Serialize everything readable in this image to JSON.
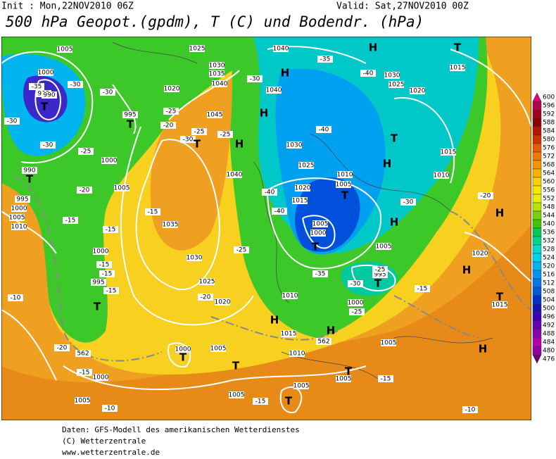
{
  "header": {
    "init": "Init : Mon,22NOV2010 06Z",
    "valid": "Valid: Sat,27NOV2010 00Z",
    "title": "500 hPa Geopot.(gpdm), T (C) und Bodendr. (hPa)"
  },
  "legend": {
    "labels": [
      600,
      596,
      592,
      588,
      584,
      580,
      576,
      572,
      568,
      564,
      560,
      556,
      552,
      548,
      544,
      540,
      536,
      532,
      528,
      524,
      520,
      516,
      512,
      508,
      504,
      500,
      496,
      492,
      488,
      484,
      480,
      476
    ],
    "colors": [
      "#e0007a",
      "#b4004a",
      "#a00020",
      "#8c0000",
      "#b41400",
      "#d23200",
      "#e65a00",
      "#f07800",
      "#f59600",
      "#fab400",
      "#fad200",
      "#fae600",
      "#e6f000",
      "#b4e600",
      "#78d200",
      "#3cc800",
      "#00c850",
      "#00d28c",
      "#00dcc8",
      "#00d2f0",
      "#00b4f0",
      "#0096f0",
      "#0078e6",
      "#005adc",
      "#0032c8",
      "#1414b4",
      "#3c00b4",
      "#6400b4",
      "#8c00b4",
      "#b400b4",
      "#9600a0",
      "#6e0078"
    ]
  },
  "map": {
    "labels": [
      "1005",
      "1000",
      "995",
      "990",
      "-35",
      "-30",
      "-30",
      "T",
      "-30",
      "995",
      "T",
      "-30",
      "-25",
      "1000",
      "990",
      "T",
      "-20",
      "995",
      "1000",
      "1005",
      "1010",
      "1005",
      "-15",
      "-15",
      "1000",
      "-15",
      "-15",
      "995",
      "-15",
      "T",
      "-10",
      "-20",
      "-15",
      "1000",
      "1005",
      "-10",
      "1025",
      "1030",
      "1035",
      "1040",
      "1020",
      "1045",
      "-25",
      "-25",
      "-20",
      "-30",
      "-25",
      "T",
      "H",
      "1040",
      "-15",
      "1035",
      "1030",
      "1025",
      "1020",
      "-20",
      "-25",
      "1040",
      "H",
      "-30",
      "1040",
      "-35",
      "H",
      "-40",
      "1030",
      "1025",
      "1020",
      "T",
      "1015",
      "H",
      "-40",
      "1030",
      "1025",
      "T",
      "H",
      "1010",
      "1005",
      "1020",
      "1015",
      "-40",
      "T",
      "1015",
      "1010",
      "-30",
      "H",
      "-40",
      "1005",
      "1000",
      "T",
      "1005",
      "-35",
      "995",
      "T",
      "-30",
      "-25",
      "-15",
      "1010",
      "1000",
      "-25",
      "H",
      "1015",
      "H",
      "562",
      "1010",
      "1005",
      "1005",
      "1000",
      "T",
      "T",
      "T",
      "1005",
      "-15",
      "1005",
      "T",
      "-15",
      "1005",
      "562",
      "-20",
      "H",
      "1020",
      "H",
      "T",
      "1015",
      "H",
      "-10"
    ]
  },
  "footer": {
    "lines": [
      "Daten: GFS-Modell des amerikanischen Wetterdienstes",
      "(C) Wetterzentrale",
      "www.wetterzentrale.de"
    ]
  }
}
